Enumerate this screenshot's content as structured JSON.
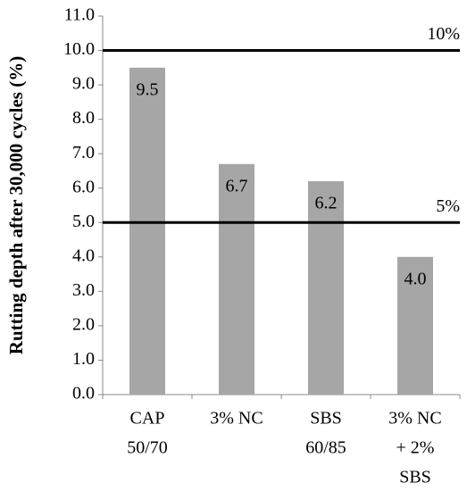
{
  "chart_data": {
    "type": "bar",
    "y_axis_label": "Rutting depth after 30,000 cycles (%)",
    "categories": [
      [
        "CAP",
        "50/70"
      ],
      [
        "3% NC"
      ],
      [
        "SBS",
        "60/85"
      ],
      [
        "3% NC",
        "+ 2%",
        "SBS"
      ]
    ],
    "values": [
      9.5,
      6.7,
      6.2,
      4.0
    ],
    "value_labels": [
      "9.5",
      "6.7",
      "6.2",
      "4.0"
    ],
    "color": "#a6a6a6",
    "ylim": [
      0,
      11
    ],
    "yticks": [
      {
        "value": 0,
        "label": "0.0"
      },
      {
        "value": 1,
        "label": "1.0"
      },
      {
        "value": 2,
        "label": "2.0"
      },
      {
        "value": 3,
        "label": "3.0"
      },
      {
        "value": 4,
        "label": "4.0"
      },
      {
        "value": 5,
        "label": "5.0"
      },
      {
        "value": 6,
        "label": "6.0"
      },
      {
        "value": 7,
        "label": "7.0"
      },
      {
        "value": 8,
        "label": "8.0"
      },
      {
        "value": 9,
        "label": "9.0"
      },
      {
        "value": 10,
        "label": "10.0"
      },
      {
        "value": 11,
        "label": "11.0"
      }
    ],
    "reference_lines": [
      {
        "value": 10,
        "label": "10%"
      },
      {
        "value": 5,
        "label": "5%"
      }
    ],
    "grid": false
  }
}
